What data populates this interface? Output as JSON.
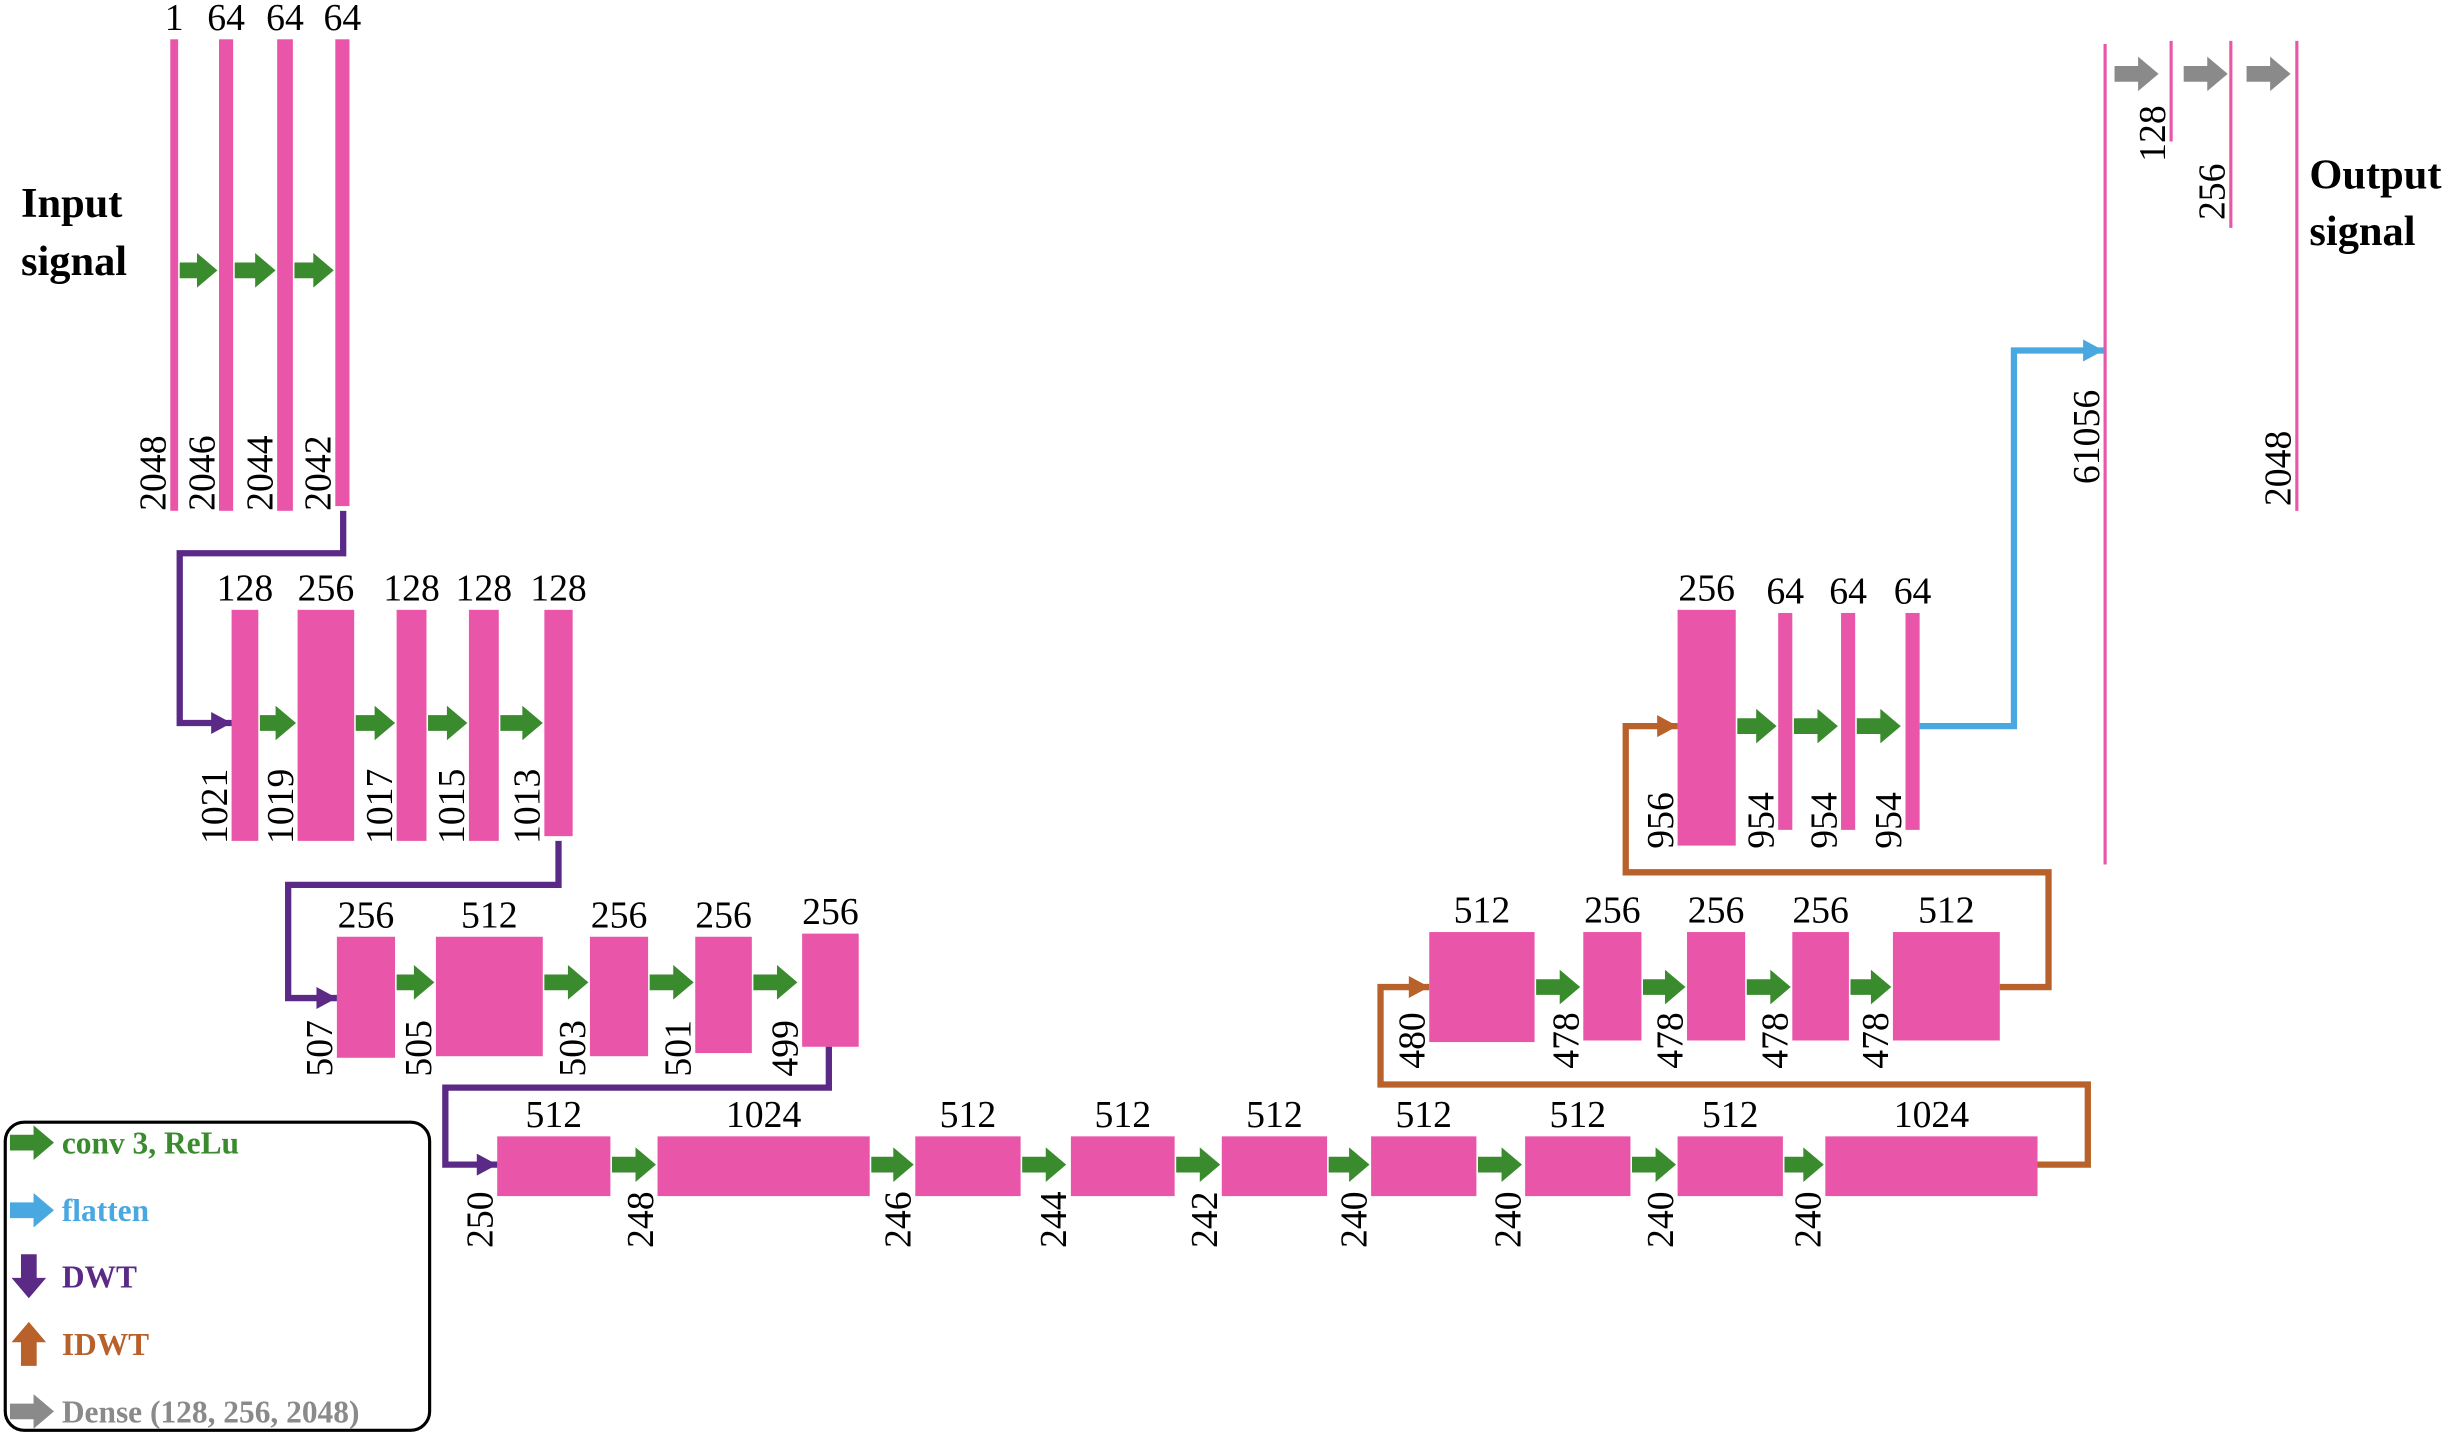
{
  "input_label": [
    "Input",
    "signal"
  ],
  "output_label": [
    "Output",
    "signal"
  ],
  "levels": [
    [
      {
        "channels": 1,
        "length": 2048
      },
      {
        "channels": 64,
        "length": 2046
      },
      {
        "channels": 64,
        "length": 2044
      },
      {
        "channels": 64,
        "length": 2042
      }
    ],
    [
      {
        "channels": 128,
        "length": 1021
      },
      {
        "channels": 256,
        "length": 1019
      },
      {
        "channels": 128,
        "length": 1017
      },
      {
        "channels": 128,
        "length": 1015
      },
      {
        "channels": 128,
        "length": 1013
      }
    ],
    [
      {
        "channels": 256,
        "length": 507
      },
      {
        "channels": 512,
        "length": 505
      },
      {
        "channels": 256,
        "length": 503
      },
      {
        "channels": 256,
        "length": 501
      },
      {
        "channels": 256,
        "length": 499
      }
    ],
    [
      {
        "channels": 512,
        "length": 250
      },
      {
        "channels": 1024,
        "length": 248
      },
      {
        "channels": 512,
        "length": 246
      },
      {
        "channels": 512,
        "length": 244
      },
      {
        "channels": 512,
        "length": 242
      },
      {
        "channels": 512,
        "length": 240
      },
      {
        "channels": 512,
        "length": 240
      },
      {
        "channels": 512,
        "length": 240
      },
      {
        "channels": 1024,
        "length": 240
      }
    ],
    [
      {
        "channels": 512,
        "length": 480
      },
      {
        "channels": 256,
        "length": 478
      },
      {
        "channels": 256,
        "length": 478
      },
      {
        "channels": 256,
        "length": 478
      },
      {
        "channels": 512,
        "length": 478
      }
    ],
    [
      {
        "channels": 256,
        "length": 956
      },
      {
        "channels": 64,
        "length": 954
      },
      {
        "channels": 64,
        "length": 954
      },
      {
        "channels": 64,
        "length": 954
      }
    ]
  ],
  "flatten_length": 61056,
  "dense": [
    128,
    256,
    2048
  ],
  "legend": [
    "conv 3, ReLu",
    "flatten",
    "DWT",
    "IDWT",
    "Dense (128, 256, 2048)"
  ]
}
